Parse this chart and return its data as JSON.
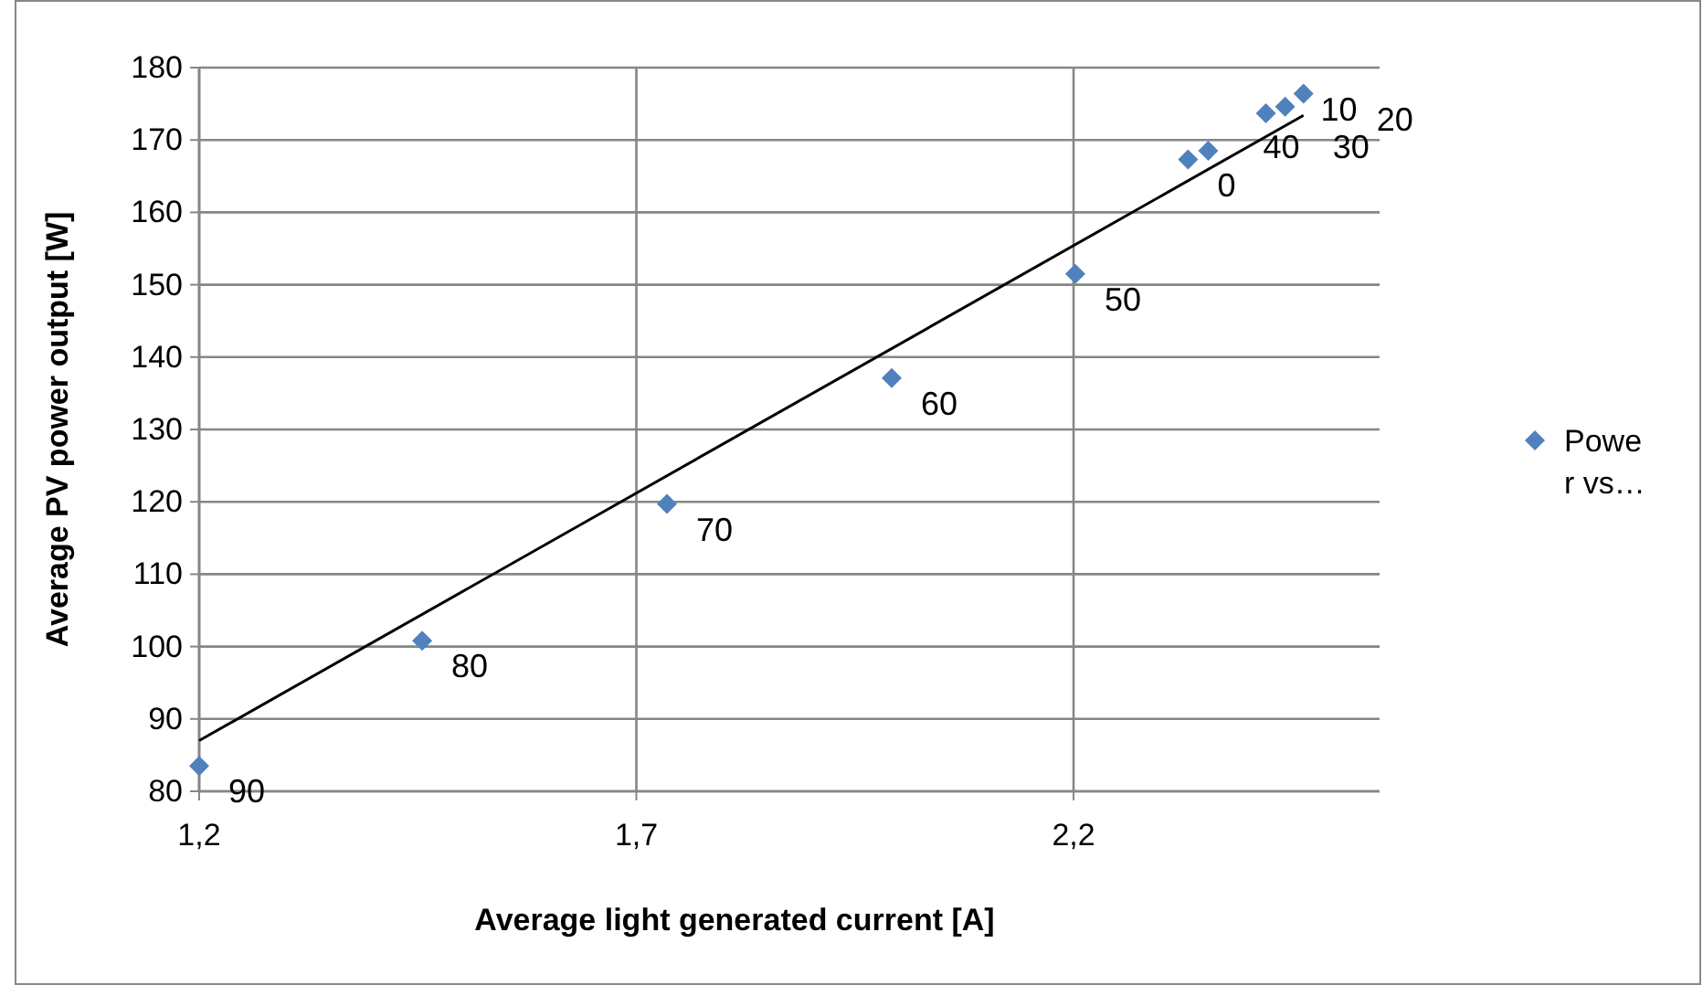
{
  "chart_data": {
    "type": "scatter",
    "xlabel": "Average light generated current [A]",
    "ylabel": "Average PV power output [W]",
    "xlim": [
      1.2,
      2.55
    ],
    "xticks": [
      {
        "value": 1.2,
        "label": "1,2"
      },
      {
        "value": 1.7,
        "label": "1,7"
      },
      {
        "value": 2.2,
        "label": "2,2"
      }
    ],
    "ylim": [
      80,
      180
    ],
    "yticks": [
      80,
      90,
      100,
      110,
      120,
      130,
      140,
      150,
      160,
      170,
      180
    ],
    "grid": true,
    "legend": "right",
    "marker": "diamond",
    "series": [
      {
        "name": "Power vs…",
        "color": "#4f81bd",
        "x": [
          1.2,
          1.455,
          1.735,
          1.992,
          2.202,
          2.331,
          2.354,
          2.42,
          2.442,
          2.463
        ],
        "values": [
          83.5,
          100.8,
          119.7,
          137.1,
          151.5,
          167.3,
          168.5,
          173.7,
          174.6,
          176.4
        ]
      },
      {
        "type": "line",
        "color": "#000000",
        "marker": "none",
        "x": [
          1.2,
          2.463
        ],
        "values": [
          87.0,
          173.4
        ]
      }
    ],
    "annotations": [
      {
        "text": "90",
        "x": 1.2,
        "y": 83.5
      },
      {
        "text": "80",
        "x": 1.455,
        "y": 100.8
      },
      {
        "text": "70",
        "x": 1.735,
        "y": 119.7
      },
      {
        "text": "60",
        "x": 1.992,
        "y": 137.1
      },
      {
        "text": "50",
        "x": 2.202,
        "y": 151.5
      },
      {
        "text": "0",
        "x": 2.331,
        "y": 167.3
      },
      {
        "text": "40",
        "x": 2.354,
        "y": 168.5
      },
      {
        "text": "10",
        "x": 2.42,
        "y": 173.7
      },
      {
        "text": "30",
        "x": 2.442,
        "y": 174.6
      },
      {
        "text": "20",
        "x": 2.463,
        "y": 176.4
      }
    ]
  }
}
